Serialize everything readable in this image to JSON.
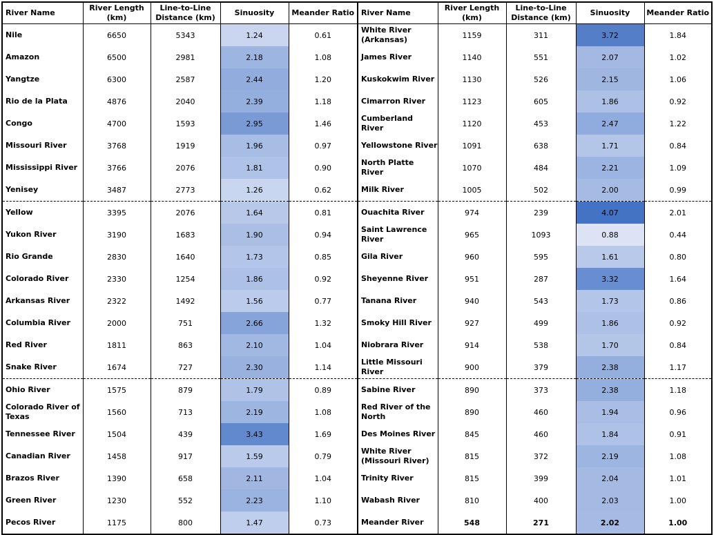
{
  "headers": {
    "name": "River Name",
    "length": "River Length (km)",
    "distance": "Line-to-Line Distance (km)",
    "sinuosity": "Sinuosity",
    "meander": "Meander Ratio"
  },
  "colors": {
    "sin_low": "#dbe3f5",
    "sin_high": "#4472c4",
    "border": "#000000"
  },
  "left": [
    {
      "name": "Nile",
      "length": "6650",
      "distance": "5343",
      "sinuosity": "1.24",
      "meander": "0.61"
    },
    {
      "name": "Amazon",
      "length": "6500",
      "distance": "2981",
      "sinuosity": "2.18",
      "meander": "1.08"
    },
    {
      "name": "Yangtze",
      "length": "6300",
      "distance": "2587",
      "sinuosity": "2.44",
      "meander": "1.20"
    },
    {
      "name": "Rio de la Plata",
      "length": "4876",
      "distance": "2040",
      "sinuosity": "2.39",
      "meander": "1.18"
    },
    {
      "name": "Congo",
      "length": "4700",
      "distance": "1593",
      "sinuosity": "2.95",
      "meander": "1.46"
    },
    {
      "name": "Missouri River",
      "length": "3768",
      "distance": "1919",
      "sinuosity": "1.96",
      "meander": "0.97"
    },
    {
      "name": "Mississippi River",
      "length": "3766",
      "distance": "2076",
      "sinuosity": "1.81",
      "meander": "0.90"
    },
    {
      "name": "Yenisey",
      "length": "3487",
      "distance": "2773",
      "sinuosity": "1.26",
      "meander": "0.62"
    },
    {
      "name": "Yellow",
      "length": "3395",
      "distance": "2076",
      "sinuosity": "1.64",
      "meander": "0.81"
    },
    {
      "name": "Yukon River",
      "length": "3190",
      "distance": "1683",
      "sinuosity": "1.90",
      "meander": "0.94"
    },
    {
      "name": "Rio Grande",
      "length": "2830",
      "distance": "1640",
      "sinuosity": "1.73",
      "meander": "0.85"
    },
    {
      "name": "Colorado River",
      "length": "2330",
      "distance": "1254",
      "sinuosity": "1.86",
      "meander": "0.92"
    },
    {
      "name": "Arkansas River",
      "length": "2322",
      "distance": "1492",
      "sinuosity": "1.56",
      "meander": "0.77"
    },
    {
      "name": "Columbia River",
      "length": "2000",
      "distance": "751",
      "sinuosity": "2.66",
      "meander": "1.32"
    },
    {
      "name": "Red River",
      "length": "1811",
      "distance": "863",
      "sinuosity": "2.10",
      "meander": "1.04"
    },
    {
      "name": "Snake River",
      "length": "1674",
      "distance": "727",
      "sinuosity": "2.30",
      "meander": "1.14"
    },
    {
      "name": "Ohio River",
      "length": "1575",
      "distance": "879",
      "sinuosity": "1.79",
      "meander": "0.89"
    },
    {
      "name": "Colorado River of Texas",
      "length": "1560",
      "distance": "713",
      "sinuosity": "2.19",
      "meander": "1.08"
    },
    {
      "name": "Tennessee River",
      "length": "1504",
      "distance": "439",
      "sinuosity": "3.43",
      "meander": "1.69"
    },
    {
      "name": "Canadian River",
      "length": "1458",
      "distance": "917",
      "sinuosity": "1.59",
      "meander": "0.79"
    },
    {
      "name": "Brazos River",
      "length": "1390",
      "distance": "658",
      "sinuosity": "2.11",
      "meander": "1.04"
    },
    {
      "name": "Green River",
      "length": "1230",
      "distance": "552",
      "sinuosity": "2.23",
      "meander": "1.10"
    },
    {
      "name": "Pecos River",
      "length": "1175",
      "distance": "800",
      "sinuosity": "1.47",
      "meander": "0.73"
    }
  ],
  "right": [
    {
      "name": "White River (Arkansas)",
      "length": "1159",
      "distance": "311",
      "sinuosity": "3.72",
      "meander": "1.84"
    },
    {
      "name": "James River",
      "length": "1140",
      "distance": "551",
      "sinuosity": "2.07",
      "meander": "1.02"
    },
    {
      "name": "Kuskokwim River",
      "length": "1130",
      "distance": "526",
      "sinuosity": "2.15",
      "meander": "1.06"
    },
    {
      "name": "Cimarron River",
      "length": "1123",
      "distance": "605",
      "sinuosity": "1.86",
      "meander": "0.92"
    },
    {
      "name": "Cumberland River",
      "length": "1120",
      "distance": "453",
      "sinuosity": "2.47",
      "meander": "1.22"
    },
    {
      "name": "Yellowstone River",
      "length": "1091",
      "distance": "638",
      "sinuosity": "1.71",
      "meander": "0.84"
    },
    {
      "name": "North Platte River",
      "length": "1070",
      "distance": "484",
      "sinuosity": "2.21",
      "meander": "1.09"
    },
    {
      "name": "Milk River",
      "length": "1005",
      "distance": "502",
      "sinuosity": "2.00",
      "meander": "0.99"
    },
    {
      "name": "Ouachita River",
      "length": "974",
      "distance": "239",
      "sinuosity": "4.07",
      "meander": "2.01"
    },
    {
      "name": "Saint Lawrence River",
      "length": "965",
      "distance": "1093",
      "sinuosity": "0.88",
      "meander": "0.44"
    },
    {
      "name": "Gila River",
      "length": "960",
      "distance": "595",
      "sinuosity": "1.61",
      "meander": "0.80"
    },
    {
      "name": "Sheyenne River",
      "length": "951",
      "distance": "287",
      "sinuosity": "3.32",
      "meander": "1.64"
    },
    {
      "name": "Tanana River",
      "length": "940",
      "distance": "543",
      "sinuosity": "1.73",
      "meander": "0.86"
    },
    {
      "name": "Smoky Hill River",
      "length": "927",
      "distance": "499",
      "sinuosity": "1.86",
      "meander": "0.92"
    },
    {
      "name": "Niobrara River",
      "length": "914",
      "distance": "538",
      "sinuosity": "1.70",
      "meander": "0.84"
    },
    {
      "name": "Little Missouri River",
      "length": "900",
      "distance": "379",
      "sinuosity": "2.38",
      "meander": "1.17"
    },
    {
      "name": "Sabine River",
      "length": "890",
      "distance": "373",
      "sinuosity": "2.38",
      "meander": "1.18"
    },
    {
      "name": "Red River of the North",
      "length": "890",
      "distance": "460",
      "sinuosity": "1.94",
      "meander": "0.96"
    },
    {
      "name": "Des Moines River",
      "length": "845",
      "distance": "460",
      "sinuosity": "1.84",
      "meander": "0.91"
    },
    {
      "name": "White River (Missouri River)",
      "length": "815",
      "distance": "372",
      "sinuosity": "2.19",
      "meander": "1.08"
    },
    {
      "name": "Trinity River",
      "length": "815",
      "distance": "399",
      "sinuosity": "2.04",
      "meander": "1.01"
    },
    {
      "name": "Wabash River",
      "length": "810",
      "distance": "400",
      "sinuosity": "2.03",
      "meander": "1.00"
    },
    {
      "name": "Meander River",
      "length": "548",
      "distance": "271",
      "sinuosity": "2.02",
      "meander": "1.00",
      "bold": true
    }
  ]
}
